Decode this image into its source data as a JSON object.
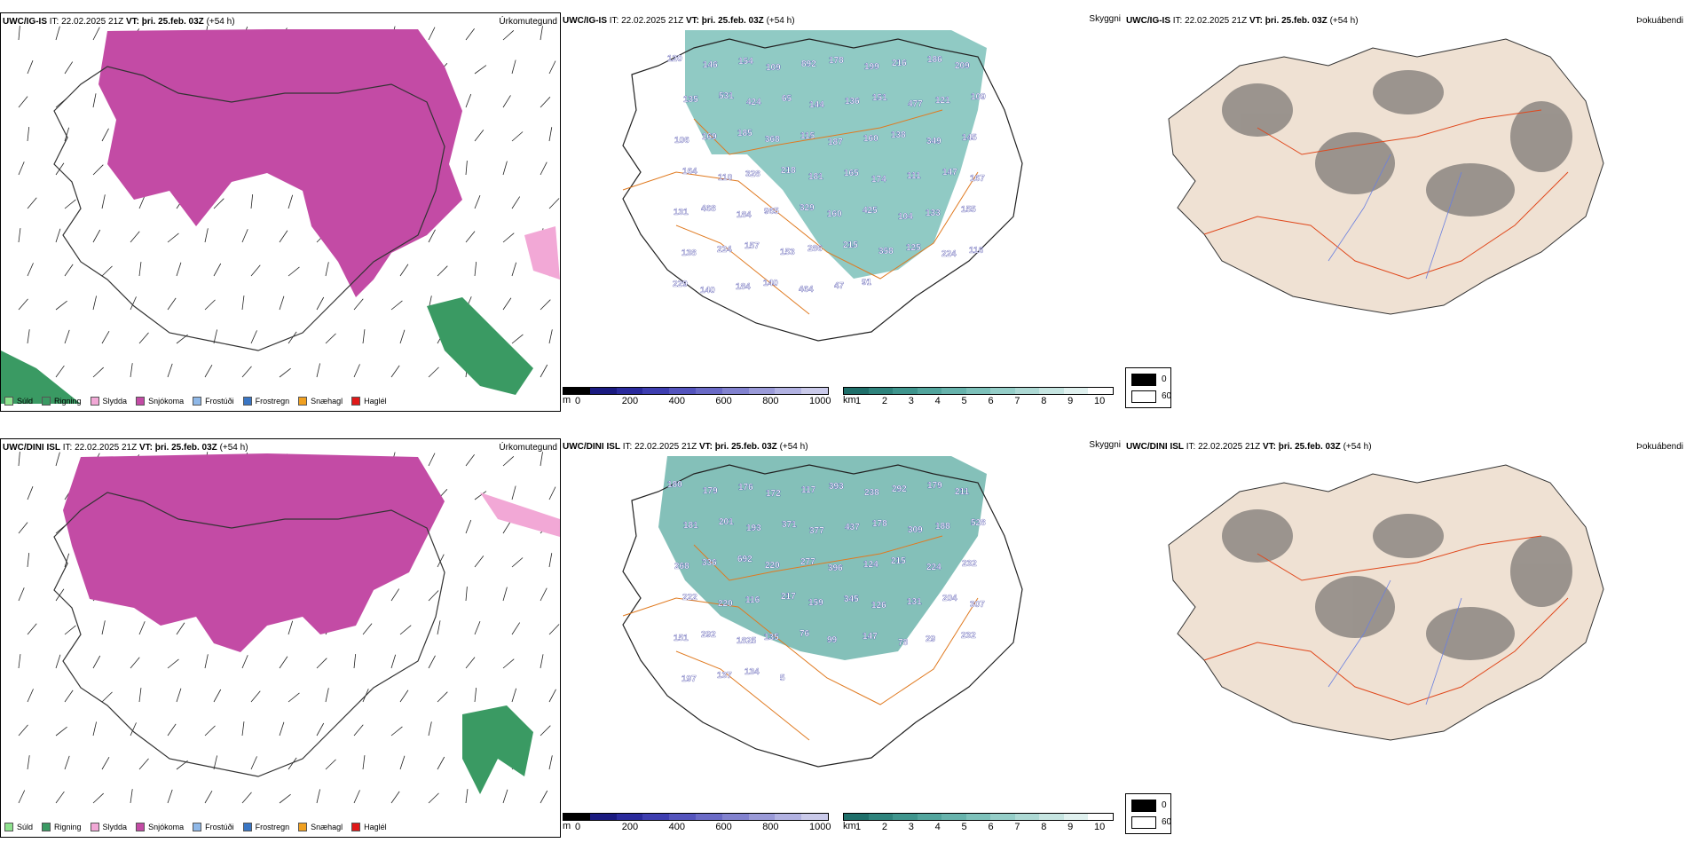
{
  "row1": {
    "precip": {
      "model": "UWC/IG-IS",
      "it_label": "IT:",
      "it_value": "22.02.2025 21Z",
      "vt_label": "VT:",
      "vt_value": "þri. 25.feb. 03Z",
      "lead": "(+54 h)",
      "title": "Úrkomutegund"
    },
    "cloud": {
      "model": "UWC/IG-IS",
      "it_label": "IT:",
      "it_value": "22.02.2025 21Z",
      "vt_label": "VT:",
      "vt_value": "þri. 25.feb. 03Z",
      "lead": "(+54 h)",
      "title": "Skyggni",
      "labels": [
        "120",
        "146",
        "154",
        "109",
        "892",
        "178",
        "199",
        "216",
        "186",
        "209",
        "135",
        "531",
        "424",
        "65",
        "144",
        "136",
        "151",
        "477",
        "121",
        "109",
        "106",
        "169",
        "185",
        "368",
        "115",
        "187",
        "160",
        "138",
        "349",
        "145",
        "164",
        "110",
        "328",
        "218",
        "181",
        "165",
        "174",
        "111",
        "147",
        "167",
        "131",
        "468",
        "184",
        "965",
        "329",
        "160",
        "425",
        "104",
        "133",
        "155",
        "138",
        "224",
        "157",
        "153",
        "286",
        "215",
        "358",
        "125",
        "224",
        "116",
        "229",
        "140",
        "184",
        "140",
        "464",
        "47",
        "91"
      ]
    },
    "fog": {
      "model": "UWC/IG-IS",
      "it_label": "IT:",
      "it_value": "22.02.2025 21Z",
      "vt_label": "VT:",
      "vt_value": "þri. 25.feb. 03Z",
      "lead": "(+54 h)",
      "title": "Þokuábendi"
    }
  },
  "row2": {
    "precip": {
      "model": "UWC/DINI ISL",
      "it_label": "IT:",
      "it_value": "22.02.2025 21Z",
      "vt_label": "VT:",
      "vt_value": "þri. 25.feb. 03Z",
      "lead": "(+54 h)",
      "title": "Úrkomutegund"
    },
    "cloud": {
      "model": "UWC/DINI ISL",
      "it_label": "IT:",
      "it_value": "22.02.2025 21Z",
      "vt_label": "VT:",
      "vt_value": "þri. 25.feb. 03Z",
      "lead": "(+54 h)",
      "title": "Skyggni",
      "labels": [
        "180",
        "179",
        "176",
        "172",
        "117",
        "393",
        "238",
        "292",
        "179",
        "211",
        "181",
        "201",
        "193",
        "371",
        "377",
        "437",
        "178",
        "309",
        "188",
        "528",
        "268",
        "336",
        "692",
        "220",
        "277",
        "396",
        "124",
        "215",
        "224",
        "232",
        "222",
        "220",
        "116",
        "217",
        "159",
        "345",
        "126",
        "131",
        "204",
        "307",
        "151",
        "292",
        "1825",
        "135",
        "76",
        "99",
        "147",
        "78",
        "29",
        "232",
        "197",
        "137",
        "134",
        "5"
      ]
    },
    "fog": {
      "model": "UWC/DINI ISL",
      "it_label": "IT:",
      "it_value": "22.02.2025 21Z",
      "vt_label": "VT:",
      "vt_value": "þri. 25.feb. 03Z",
      "lead": "(+54 h)",
      "title": "Þokuábendi"
    }
  },
  "precip_legend": [
    {
      "label": "Súld",
      "color": "#8ee28e"
    },
    {
      "label": "Rigning",
      "color": "#3a9a63"
    },
    {
      "label": "Slydda",
      "color": "#f2a8d6"
    },
    {
      "label": "Snjókoma",
      "color": "#c34ba5"
    },
    {
      "label": "Frostúði",
      "color": "#8fb8e8"
    },
    {
      "label": "Frostregn",
      "color": "#3a76c4"
    },
    {
      "label": "Snæhagl",
      "color": "#f0a020"
    },
    {
      "label": "Haglél",
      "color": "#e01818"
    }
  ],
  "cloudbase_colorbar": {
    "unit": "m",
    "ticks": [
      "0",
      "200",
      "400",
      "600",
      "800",
      "1000"
    ],
    "colors": [
      "#000000",
      "#1a1a80",
      "#2a2a9c",
      "#3e3eb0",
      "#5454bd",
      "#6a6ac6",
      "#8282cf",
      "#9a9ad8",
      "#b2b2e2",
      "#cacaea"
    ]
  },
  "visibility_colorbar": {
    "unit": "km",
    "ticks": [
      "1",
      "2",
      "3",
      "4",
      "5",
      "6",
      "7",
      "8",
      "9",
      "10"
    ],
    "colors": [
      "#1f6f6a",
      "#2e837c",
      "#3f958d",
      "#52a59d",
      "#67b3ac",
      "#7dc1ba",
      "#95cec8",
      "#add9d4",
      "#c6e5e1",
      "#e0f1ef",
      "#ffffff"
    ]
  },
  "fog_legend": {
    "black_value": "0",
    "white_value": "60"
  }
}
